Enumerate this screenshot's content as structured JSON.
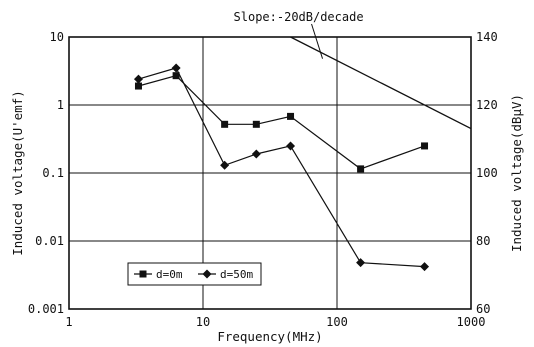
{
  "chart_data": {
    "type": "line",
    "title": "",
    "xlabel": "Frequency(MHz)",
    "ylabel": "Induced voltage(U'emf)",
    "y2label": "Induced voltage(dBμV)",
    "x_scale": "log",
    "y_scale": "log",
    "xlim": [
      1,
      1000
    ],
    "ylim": [
      0.001,
      10
    ],
    "y2lim": [
      60,
      140
    ],
    "x_ticks": [
      "1",
      "10",
      "100",
      "1000"
    ],
    "y_ticks": [
      "0.001",
      "0.01",
      "0.1",
      "1",
      "10"
    ],
    "y2_ticks": [
      "60",
      "80",
      "100",
      "120",
      "140"
    ],
    "grid": true,
    "legend": "bottom-left",
    "series": [
      {
        "name": "d=0m",
        "marker": "square",
        "color": "#111111",
        "x": [
          3.3,
          6.3,
          14.5,
          25,
          45,
          150,
          450
        ],
        "y": [
          1.9,
          2.7,
          0.52,
          0.52,
          0.68,
          0.115,
          0.25
        ]
      },
      {
        "name": "d=50m",
        "marker": "diamond",
        "color": "#111111",
        "x": [
          3.3,
          6.3,
          14.5,
          25,
          45,
          150,
          450
        ],
        "y": [
          2.4,
          3.5,
          0.13,
          0.19,
          0.25,
          0.0048,
          0.0042
        ]
      }
    ],
    "annotation": {
      "text": "Slope:-20dB/decade",
      "line": {
        "x": [
          45,
          1000
        ],
        "y": [
          10,
          0.45
        ]
      },
      "arrow_to": {
        "x": 78,
        "y": 4.8
      }
    }
  }
}
